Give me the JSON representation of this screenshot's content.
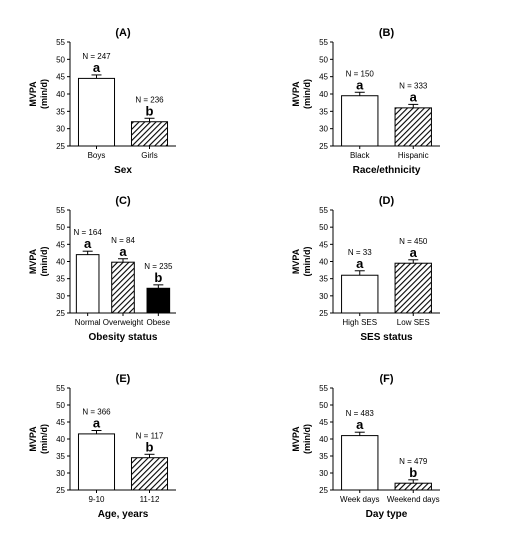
{
  "chart_data": [
    {
      "type": "bar",
      "title": "(A)",
      "xlabel": "Sex",
      "ylabel": [
        "MVPA",
        "(min/d)"
      ],
      "ylim": [
        25,
        55
      ],
      "yticks": [
        25,
        30,
        35,
        40,
        45,
        50,
        55
      ],
      "categories": [
        "Boys",
        "Girls"
      ],
      "values": [
        44.5,
        32.0
      ],
      "errors": [
        1.0,
        1.0
      ],
      "n_labels": [
        "N = 247",
        "N = 236"
      ],
      "sig_letters": [
        "a",
        "b"
      ],
      "fills": [
        "white",
        "hatch"
      ]
    },
    {
      "type": "bar",
      "title": "(B)",
      "xlabel": "Race/ethnicity",
      "ylabel": [
        "MVPA",
        "(min/d)"
      ],
      "ylim": [
        25,
        55
      ],
      "yticks": [
        25,
        30,
        35,
        40,
        45,
        50,
        55
      ],
      "categories": [
        "Black",
        "Hispanic"
      ],
      "values": [
        39.5,
        36.0
      ],
      "errors": [
        1.0,
        1.0
      ],
      "n_labels": [
        "N = 150",
        "N = 333"
      ],
      "sig_letters": [
        "a",
        "a"
      ],
      "fills": [
        "white",
        "hatch"
      ]
    },
    {
      "type": "bar",
      "title": "(C)",
      "xlabel": "Obesity status",
      "ylabel": [
        "MVPA",
        "(min/d)"
      ],
      "ylim": [
        25,
        55
      ],
      "yticks": [
        25,
        30,
        35,
        40,
        45,
        50,
        55
      ],
      "categories": [
        "Normal",
        "Overweight",
        "Obese"
      ],
      "values": [
        42.0,
        39.8,
        32.2
      ],
      "errors": [
        1.0,
        1.0,
        1.0
      ],
      "n_labels": [
        "N = 164",
        "N = 84",
        "N = 235"
      ],
      "sig_letters": [
        "a",
        "a",
        "b"
      ],
      "fills": [
        "white",
        "hatch",
        "black"
      ]
    },
    {
      "type": "bar",
      "title": "(D)",
      "xlabel": "SES status",
      "ylabel": [
        "MVPA",
        "(min/d)"
      ],
      "ylim": [
        25,
        55
      ],
      "yticks": [
        25,
        30,
        35,
        40,
        45,
        50,
        55
      ],
      "categories": [
        "High SES",
        "Low SES"
      ],
      "values": [
        36.0,
        39.5
      ],
      "errors": [
        1.3,
        1.0
      ],
      "n_labels": [
        "N = 33",
        "N = 450"
      ],
      "sig_letters": [
        "a",
        "a"
      ],
      "fills": [
        "white",
        "hatch"
      ]
    },
    {
      "type": "bar",
      "title": "(E)",
      "xlabel": "Age, years",
      "ylabel": [
        "MVPA",
        "(min/d)"
      ],
      "ylim": [
        25,
        55
      ],
      "yticks": [
        25,
        30,
        35,
        40,
        45,
        50,
        55
      ],
      "categories": [
        "9-10",
        "11-12"
      ],
      "values": [
        41.5,
        34.5
      ],
      "errors": [
        1.0,
        1.0
      ],
      "n_labels": [
        "N = 366",
        "N = 117"
      ],
      "sig_letters": [
        "a",
        "b"
      ],
      "fills": [
        "white",
        "hatch"
      ]
    },
    {
      "type": "bar",
      "title": "(F)",
      "xlabel": "Day type",
      "ylabel": [
        "MVPA",
        "(min/d)"
      ],
      "ylim": [
        25,
        55
      ],
      "yticks": [
        25,
        30,
        35,
        40,
        45,
        50,
        55
      ],
      "categories": [
        "Week days",
        "Weekend days"
      ],
      "values": [
        41.0,
        27.0
      ],
      "errors": [
        1.0,
        1.0
      ],
      "n_labels": [
        "N = 483",
        "N = 479"
      ],
      "sig_letters": [
        "a",
        "b"
      ],
      "fills": [
        "white",
        "hatch"
      ]
    }
  ]
}
